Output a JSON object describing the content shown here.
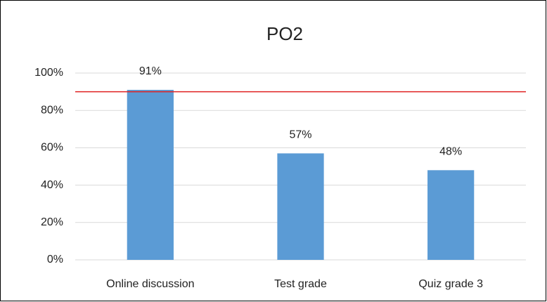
{
  "chart_data": {
    "type": "bar",
    "title": "PO2",
    "categories": [
      "Online discussion",
      "Test grade",
      "Quiz grade 3"
    ],
    "values": [
      91,
      57,
      48
    ],
    "value_labels": [
      "91%",
      "57%",
      "48%"
    ],
    "color": "#5b9bd5",
    "ylim": [
      0,
      100
    ],
    "yticks": [
      {
        "value": 0,
        "label": "0%"
      },
      {
        "value": 20,
        "label": "20%"
      },
      {
        "value": 40,
        "label": "40%"
      },
      {
        "value": 60,
        "label": "60%"
      },
      {
        "value": 80,
        "label": "80%"
      },
      {
        "value": 100,
        "label": "100%"
      }
    ],
    "grid": true,
    "reference_line": {
      "value": 90,
      "color": "#e02020"
    }
  }
}
